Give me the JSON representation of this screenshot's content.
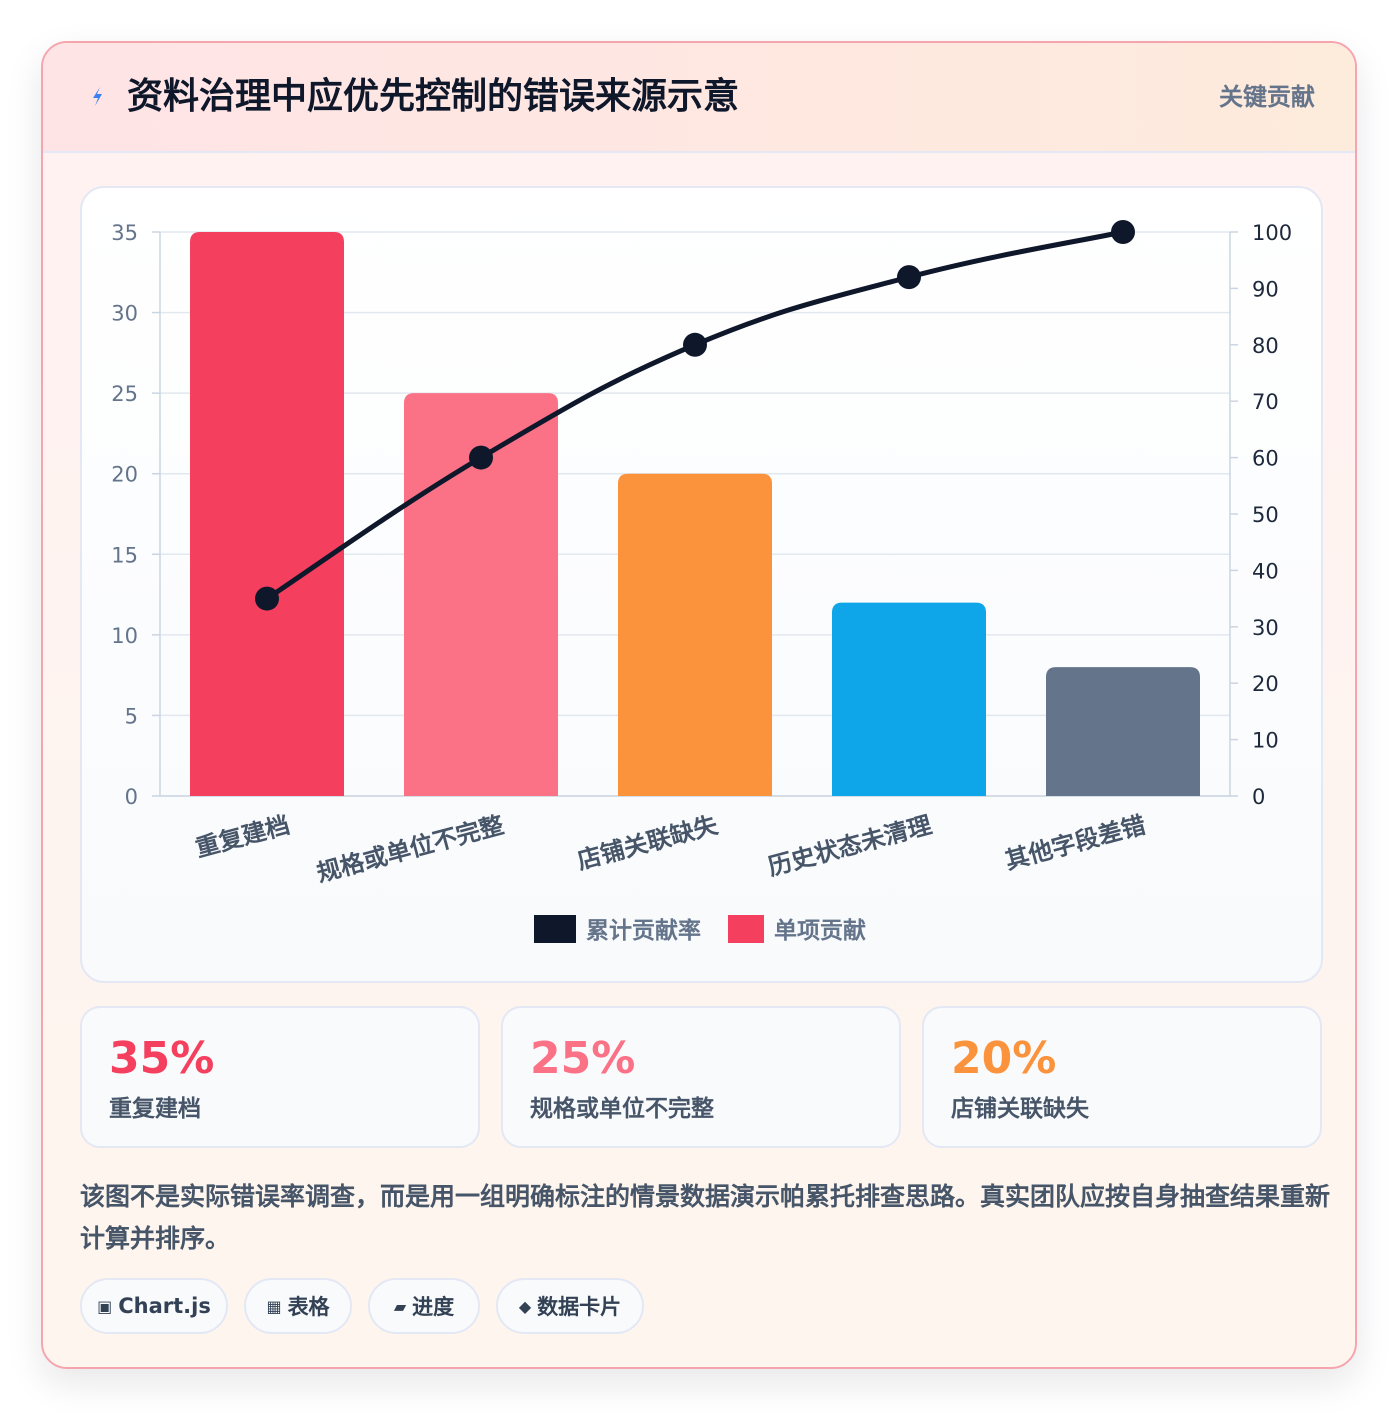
{
  "header": {
    "title": "资料治理中应优先控制的错误来源示意",
    "tag": "关键贡献"
  },
  "icons": {
    "title": "bolt-icon",
    "chips": [
      "chart-icon",
      "table-icon",
      "progress-icon",
      "diamond-icon"
    ]
  },
  "chart_data": {
    "type": "bar",
    "title": "",
    "categories": [
      "重复建档",
      "规格或单位不完整",
      "店铺关联缺失",
      "历史状态未清理",
      "其他字段差错"
    ],
    "series": [
      {
        "name": "单项贡献",
        "type": "bar",
        "axis": "left",
        "values": [
          35,
          25,
          20,
          12,
          8
        ]
      },
      {
        "name": "累计贡献率",
        "type": "line",
        "axis": "right",
        "values": [
          35,
          60,
          80,
          92,
          100
        ]
      }
    ],
    "bar_colors": [
      "#f43f5e",
      "#fb7185",
      "#fb923c",
      "#0ea5e9",
      "#64748b"
    ],
    "line_color": "#0f172a",
    "y_left": {
      "min": 0,
      "max": 35,
      "ticks": [
        0,
        5,
        10,
        15,
        20,
        25,
        30,
        35
      ]
    },
    "y_right": {
      "min": 0,
      "max": 100,
      "ticks": [
        0,
        10,
        20,
        30,
        40,
        50,
        60,
        70,
        80,
        90,
        100
      ]
    },
    "legend": [
      {
        "label": "累计贡献率",
        "color": "#0f172a"
      },
      {
        "label": "单项贡献",
        "color": "#f43f5e"
      }
    ],
    "legend_position": "bottom",
    "grid": true
  },
  "stats": [
    {
      "value": "35%",
      "label": "重复建档",
      "color": "#f43f5e"
    },
    {
      "value": "25%",
      "label": "规格或单位不完整",
      "color": "#fb7185"
    },
    {
      "value": "20%",
      "label": "店铺关联缺失",
      "color": "#fb923c"
    }
  ],
  "note": "该图不是实际错误率调查，而是用一组明确标注的情景数据演示帕累托排查思路。真实团队应按自身抽查结果重新计算并排序。",
  "chips": [
    {
      "icon": "▣",
      "label": "Chart.js"
    },
    {
      "icon": "▦",
      "label": "表格"
    },
    {
      "icon": "▰",
      "label": "进度"
    },
    {
      "icon": "◆",
      "label": "数据卡片"
    }
  ]
}
